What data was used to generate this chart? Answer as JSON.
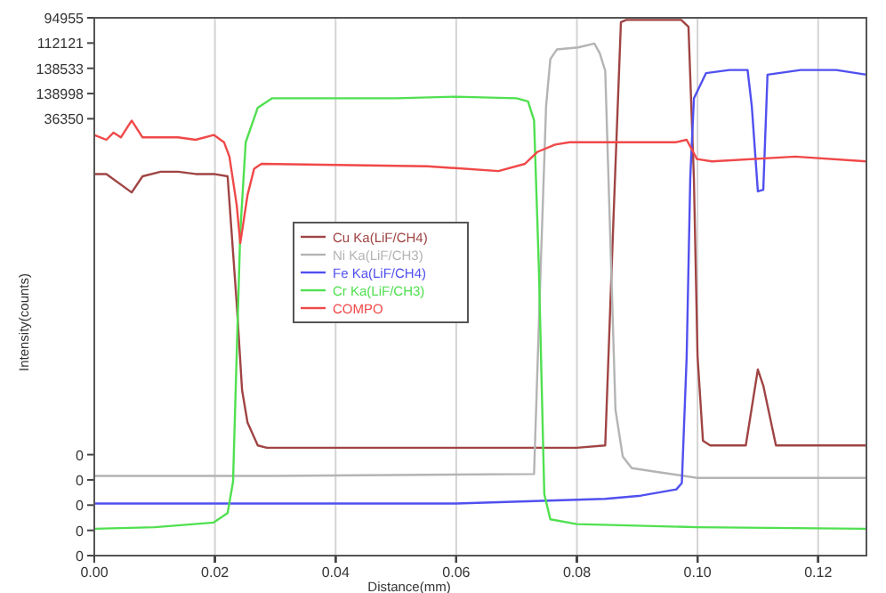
{
  "chart_data": [
    {
      "type": "line",
      "xlabel": "Distance(mm)",
      "ylabel": "Intensity(counts)",
      "xlim": [
        0,
        0.128
      ],
      "xticks": [
        {
          "value": 0,
          "label": "0.00"
        },
        {
          "value": 0.02,
          "label": "0.02"
        },
        {
          "value": 0.04,
          "label": "0.04"
        },
        {
          "value": 0.06,
          "label": "0.06"
        },
        {
          "value": 0.08,
          "label": "0.08"
        },
        {
          "value": 0.1,
          "label": "0.10"
        },
        {
          "value": 0.12,
          "label": "0.12"
        }
      ],
      "ylim": [
        -21950,
        94955
      ],
      "yticks": [
        0,
        94955
      ],
      "grid": "x",
      "legend": "center",
      "line_style": "solid",
      "series": [
        {
          "name": "Cu Ka(LiF/CH4)",
          "color": "#a04444",
          "x": [
            0,
            0.002,
            0.0062,
            0.008,
            0.011,
            0.0139,
            0.0168,
            0.0198,
            0.0221,
            0.0236,
            0.0245,
            0.0254,
            0.0271,
            0.0286,
            0.05,
            0.08,
            0.0847,
            0.0861,
            0.0873,
            0.0882,
            0.0935,
            0.0973,
            0.0985,
            0.0994,
            0.1,
            0.1009,
            0.1021,
            0.108,
            0.11,
            0.1109,
            0.113,
            0.128
          ],
          "values": [
            61000,
            61000,
            57000,
            60500,
            61500,
            61500,
            61000,
            61000,
            60500,
            33000,
            14000,
            7000,
            2000,
            1500,
            1500,
            1500,
            2000,
            52500,
            94000,
            94500,
            94500,
            94500,
            93000,
            60000,
            21500,
            3000,
            2000,
            2000,
            18500,
            15000,
            2000,
            2000
          ]
        }
      ]
    },
    {
      "type": "line",
      "xlim": [
        0,
        0.128
      ],
      "xticks": [
        {
          "value": 0,
          "label": null
        },
        {
          "value": 0.02,
          "label": null
        },
        {
          "value": 0.04,
          "label": null
        },
        {
          "value": 0.06,
          "label": null
        },
        {
          "value": 0.08,
          "label": null
        },
        {
          "value": 0.1,
          "label": null
        },
        {
          "value": 0.12,
          "label": null
        }
      ],
      "ylim": [
        -19440,
        118600
      ],
      "yticks": [
        0,
        112121
      ],
      "tick_labels": "y",
      "legend": "center",
      "line_style": "solid",
      "series": [
        {
          "name": "Ni Ka(LiF/CH3)",
          "color": "#b4b4b4",
          "x": [
            0,
            0.03,
            0.0729,
            0.074,
            0.0749,
            0.0756,
            0.0767,
            0.0802,
            0.0829,
            0.0838,
            0.0847,
            0.0855,
            0.0864,
            0.0876,
            0.0891,
            0.0935,
            0.1,
            0.128
          ],
          "values": [
            1000,
            1000,
            1500,
            54500,
            96000,
            108000,
            110500,
            111000,
            112000,
            109500,
            105000,
            64000,
            18000,
            6000,
            3000,
            2000,
            500,
            500
          ]
        }
      ]
    },
    {
      "type": "line",
      "xlim": [
        0,
        0.128
      ],
      "xticks": [
        {
          "value": 0,
          "label": null
        },
        {
          "value": 0.02,
          "label": null
        },
        {
          "value": 0.04,
          "label": null
        },
        {
          "value": 0.06,
          "label": null
        },
        {
          "value": 0.08,
          "label": null
        },
        {
          "value": 0.1,
          "label": null
        },
        {
          "value": 0.12,
          "label": null
        }
      ],
      "ylim": [
        -16010,
        154550
      ],
      "yticks": [
        0,
        138533
      ],
      "tick_labels": "y",
      "legend": "center",
      "line_style": "solid",
      "series": [
        {
          "name": "Fe Ka(LiF/CH4)",
          "color": "#5050f0",
          "x": [
            0,
            0.06,
            0.0847,
            0.0906,
            0.0965,
            0.0974,
            0.0982,
            0.0988,
            0.0994,
            0.1014,
            0.1053,
            0.1083,
            0.109,
            0.11,
            0.1109,
            0.1116,
            0.1171,
            0.123,
            0.128
          ],
          "values": [
            500,
            500,
            2000,
            3000,
            5000,
            7000,
            47000,
            104000,
            129000,
            137000,
            138000,
            138000,
            126500,
            99500,
            100000,
            136500,
            138000,
            138000,
            136500
          ]
        }
      ]
    },
    {
      "type": "line",
      "xlim": [
        0,
        0.128
      ],
      "xticks": [
        {
          "value": 0,
          "label": null
        },
        {
          "value": 0.02,
          "label": null
        },
        {
          "value": 0.04,
          "label": null
        },
        {
          "value": 0.06,
          "label": null
        },
        {
          "value": 0.08,
          "label": null
        },
        {
          "value": 0.1,
          "label": null
        },
        {
          "value": 0.12,
          "label": null
        }
      ],
      "ylim": [
        -8030,
        163100
      ],
      "yticks": [
        0,
        138998
      ],
      "tick_labels": "y",
      "legend": "center",
      "line_style": "solid",
      "series": [
        {
          "name": "Cr Ka(LiF/CH3)",
          "color": "#50e050",
          "x": [
            0,
            0.01,
            0.0198,
            0.0221,
            0.023,
            0.0236,
            0.0242,
            0.0251,
            0.0271,
            0.0295,
            0.04,
            0.05,
            0.06,
            0.07,
            0.0719,
            0.0729,
            0.0737,
            0.0746,
            0.0756,
            0.08,
            0.1,
            0.128
          ],
          "values": [
            500,
            1000,
            2500,
            5500,
            15500,
            55500,
            95000,
            123500,
            134500,
            137500,
            137500,
            137500,
            138000,
            137500,
            136500,
            130500,
            83500,
            11500,
            3500,
            2000,
            1000,
            500
          ]
        }
      ]
    },
    {
      "type": "line",
      "xlim": [
        0,
        0.128
      ],
      "xticks": [
        {
          "value": 0,
          "label": null
        },
        {
          "value": 0.02,
          "label": null
        },
        {
          "value": 0.04,
          "label": null
        },
        {
          "value": 0.06,
          "label": null
        },
        {
          "value": 0.08,
          "label": null
        },
        {
          "value": 0.1,
          "label": null
        },
        {
          "value": 0.12,
          "label": null
        }
      ],
      "ylim": [
        0,
        44750
      ],
      "yticks": [
        0,
        36350
      ],
      "tick_labels": "y",
      "legend": "center",
      "line_style": "solid",
      "series": [
        {
          "name": "COMPO",
          "color": "#f04848",
          "x": [
            0,
            0.002,
            0.0032,
            0.0044,
            0.0062,
            0.008,
            0.0139,
            0.0168,
            0.0198,
            0.0215,
            0.0224,
            0.0236,
            0.0242,
            0.0254,
            0.0265,
            0.0277,
            0.0552,
            0.067,
            0.0714,
            0.0735,
            0.0764,
            0.0788,
            0.0847,
            0.0965,
            0.0982,
            0.0999,
            0.1024,
            0.1162,
            0.128
          ],
          "values": [
            35000,
            34600,
            35200,
            34800,
            36200,
            34800,
            34800,
            34600,
            35000,
            34400,
            33200,
            29200,
            26000,
            30000,
            32200,
            32600,
            32400,
            32000,
            32600,
            33600,
            34200,
            34400,
            34400,
            34400,
            34600,
            33000,
            32800,
            33200,
            32800
          ]
        }
      ]
    }
  ]
}
